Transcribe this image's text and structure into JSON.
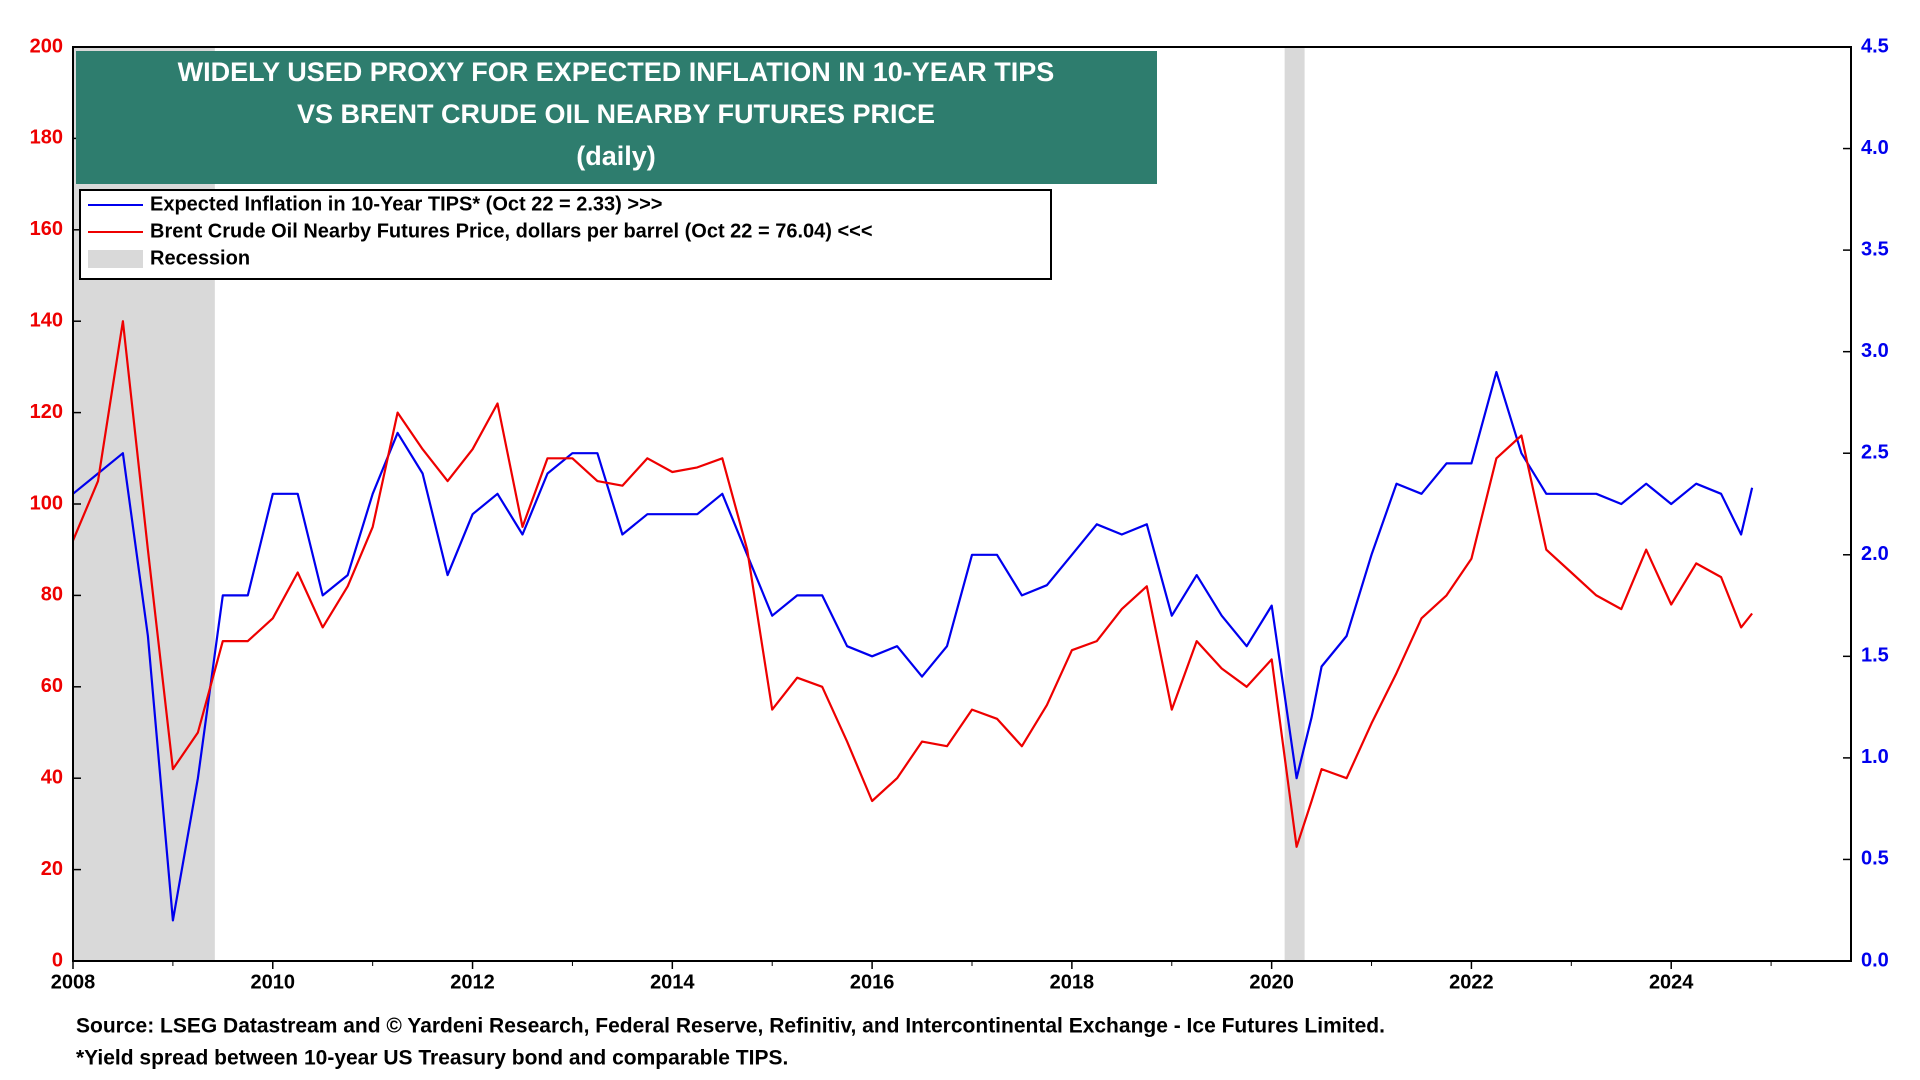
{
  "chart_data": {
    "type": "line",
    "title": [
      "WIDELY USED PROXY FOR EXPECTED INFLATION IN 10-YEAR TIPS",
      "VS BRENT CRUDE OIL NEARBY FUTURES PRICE",
      "(daily)"
    ],
    "notes": [
      "Source: LSEG Datastream and © Yardeni Research, Federal Reserve, Refinitiv, and Intercontinental Exchange - Ice Futures Limited.",
      "*Yield spread between 10-year US Treasury bond and comparable TIPS."
    ],
    "x": [
      2008.0,
      2008.25,
      2008.5,
      2008.75,
      2009.0,
      2009.25,
      2009.5,
      2009.75,
      2010.0,
      2010.25,
      2010.5,
      2010.75,
      2011.0,
      2011.25,
      2011.5,
      2011.75,
      2012.0,
      2012.25,
      2012.5,
      2012.75,
      2013.0,
      2013.25,
      2013.5,
      2013.75,
      2014.0,
      2014.25,
      2014.5,
      2014.75,
      2015.0,
      2015.25,
      2015.5,
      2015.75,
      2016.0,
      2016.25,
      2016.5,
      2016.75,
      2017.0,
      2017.25,
      2017.5,
      2017.75,
      2018.0,
      2018.25,
      2018.5,
      2018.75,
      2019.0,
      2019.25,
      2019.5,
      2019.75,
      2020.0,
      2020.25,
      2020.4,
      2020.5,
      2020.75,
      2021.0,
      2021.25,
      2021.5,
      2021.75,
      2022.0,
      2022.25,
      2022.5,
      2022.75,
      2023.0,
      2023.25,
      2023.5,
      2023.75,
      2024.0,
      2024.25,
      2024.5,
      2024.7,
      2024.81
    ],
    "series": [
      {
        "name": "Expected Inflation in 10-Year TIPS* (Oct 22 = 2.33) >>>",
        "color": "#0000ee",
        "axis": "y2",
        "values": [
          2.3,
          2.4,
          2.5,
          1.6,
          0.2,
          0.9,
          1.8,
          1.8,
          2.3,
          2.3,
          1.8,
          1.9,
          2.3,
          2.6,
          2.4,
          1.9,
          2.2,
          2.3,
          2.1,
          2.4,
          2.5,
          2.5,
          2.1,
          2.2,
          2.2,
          2.2,
          2.3,
          2.0,
          1.7,
          1.8,
          1.8,
          1.55,
          1.5,
          1.55,
          1.4,
          1.55,
          2.0,
          2.0,
          1.8,
          1.85,
          2.0,
          2.15,
          2.1,
          2.15,
          1.7,
          1.9,
          1.7,
          1.55,
          1.75,
          0.9,
          1.2,
          1.45,
          1.6,
          2.0,
          2.35,
          2.3,
          2.45,
          2.45,
          2.9,
          2.5,
          2.3,
          2.3,
          2.3,
          2.25,
          2.35,
          2.25,
          2.35,
          2.3,
          2.1,
          2.33
        ]
      },
      {
        "name": "Brent Crude Oil Nearby Futures Price, dollars per barrel (Oct 22 = 76.04) <<<",
        "color": "#ee0000",
        "values": [
          92,
          105,
          140,
          90,
          42,
          50,
          70,
          70,
          75,
          85,
          73,
          82,
          95,
          120,
          112,
          105,
          112,
          122,
          95,
          110,
          110,
          105,
          104,
          110,
          107,
          108,
          110,
          90,
          55,
          62,
          60,
          48,
          35,
          40,
          48,
          47,
          55,
          53,
          47,
          56,
          68,
          70,
          77,
          82,
          55,
          70,
          64,
          60,
          66,
          25,
          35,
          42,
          40,
          52,
          63,
          75,
          80,
          88,
          110,
          115,
          90,
          85,
          80,
          77,
          90,
          78,
          87,
          84,
          73,
          76.04
        ]
      }
    ],
    "recession_label": "Recession",
    "recession_color": "#d9d9d9",
    "recessions": [
      [
        2008.0,
        2009.42
      ],
      [
        2020.13,
        2020.33
      ]
    ],
    "xlim": [
      2008,
      2025.8
    ],
    "xticks": [
      2008,
      2010,
      2012,
      2014,
      2016,
      2018,
      2020,
      2022,
      2024
    ],
    "ylim": [
      0,
      200
    ],
    "yticks": [
      0,
      20,
      40,
      60,
      80,
      100,
      120,
      140,
      160,
      180,
      200
    ],
    "y2lim": [
      0,
      4.5
    ],
    "y2ticks": [
      {
        "value": 0,
        "label": "0.0"
      },
      0.5,
      {
        "value": 1,
        "label": "1.0"
      },
      1.5,
      {
        "value": 2,
        "label": "2.0"
      },
      2.5,
      {
        "value": 3,
        "label": "3.0"
      },
      3.5,
      {
        "value": 4,
        "label": "4.0"
      },
      4.5
    ],
    "grid": false
  }
}
